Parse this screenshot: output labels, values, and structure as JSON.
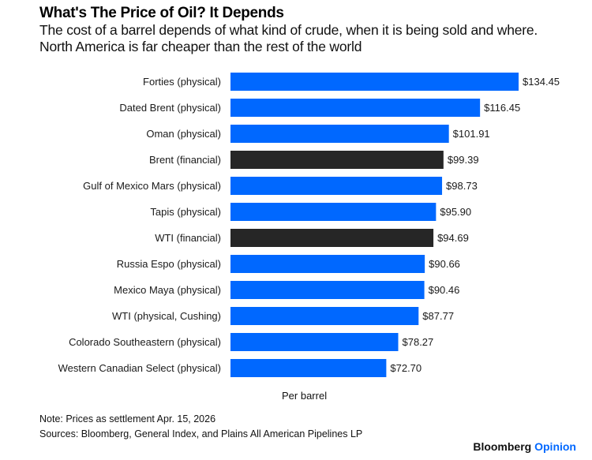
{
  "header": {
    "title": "What's The Price of Oil? It Depends",
    "subtitle_line1": "The cost of a barrel depends of what kind of crude, when it is being sold and where.",
    "subtitle_line2": "North America is far cheaper than the rest of the world"
  },
  "colors": {
    "physical": "#0068ff",
    "financial": "#262626",
    "brand_accent": "#0068ff"
  },
  "chart_data": {
    "type": "bar",
    "orientation": "horizontal",
    "title": "What's The Price of Oil? It Depends",
    "xlabel": "Per barrel",
    "ylabel": "",
    "xlim": [
      0,
      135
    ],
    "grid": false,
    "categories": [
      "Forties (physical)",
      "Dated Brent (physical)",
      "Oman (physical)",
      "Brent (financial)",
      "Gulf of Mexico Mars (physical)",
      "Tapis (physical)",
      "WTI (financial)",
      "Russia Espo (physical)",
      "Mexico Maya (physical)",
      "WTI (physical, Cushing)",
      "Colorado Southeastern (physical)",
      "Western Canadian Select (physical)"
    ],
    "values": [
      134.45,
      116.45,
      101.91,
      99.39,
      98.73,
      95.9,
      94.69,
      90.66,
      90.46,
      87.77,
      78.27,
      72.7
    ],
    "value_labels": [
      "$134.45",
      "$116.45",
      "$101.91",
      "$99.39",
      "$98.73",
      "$95.90",
      "$94.69",
      "$90.66",
      "$90.46",
      "$87.77",
      "$78.27",
      "$72.70"
    ],
    "kinds": [
      "physical",
      "physical",
      "physical",
      "financial",
      "physical",
      "physical",
      "financial",
      "physical",
      "physical",
      "physical",
      "physical",
      "physical"
    ]
  },
  "footer": {
    "axis_title": "Per barrel",
    "note": "Note: Prices as settlement Apr. 15, 2026",
    "sources": "Sources: Bloomberg, General Index, and Plains All American Pipelines LP",
    "brand_main": "Bloomberg",
    "brand_accent": "Opinion"
  }
}
